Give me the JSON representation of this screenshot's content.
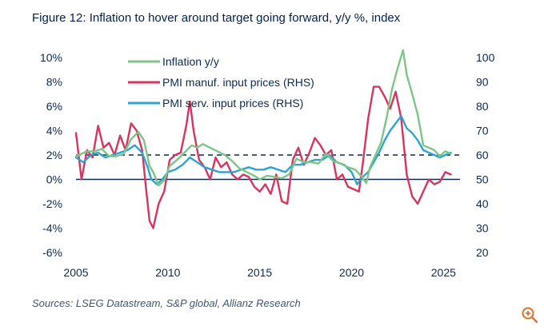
{
  "figure": {
    "title": "Figure 12: Inflation to hover around target going forward, y/y %, index",
    "source": "Sources: LSEG Datastream, S&P global, Allianz Research",
    "icon": "zoom-in-icon"
  },
  "chart_data": {
    "type": "line",
    "title": "Figure 12: Inflation to hover around target going forward, y/y %, index",
    "xlabel": "",
    "ylabel": "",
    "xlim": [
      2005,
      2025.9
    ],
    "ylim": [
      -6,
      10
    ],
    "y2lim": [
      20,
      100
    ],
    "x_ticks": [
      "2005",
      "2010",
      "2015",
      "2020",
      "2025"
    ],
    "y_ticks": [
      "10%",
      "8%",
      "6%",
      "4%",
      "2%",
      "0%",
      "-2%",
      "-4%",
      "-6%"
    ],
    "y2_ticks": [
      "100",
      "90",
      "80",
      "70",
      "60",
      "50",
      "40",
      "30",
      "20"
    ],
    "legend_position": "top-left",
    "reference_lines": [
      {
        "name": "Inflation target",
        "axis": "left",
        "value": 2,
        "style": "dashed"
      },
      {
        "name": "Zero line",
        "axis": "left",
        "value": 0,
        "style": "solid"
      }
    ],
    "series": [
      {
        "name": "Inflation y/y",
        "axis": "left",
        "color": "#7cc687",
        "x": [
          2005.0,
          2005.3,
          2005.6,
          2006.0,
          2006.4,
          2006.8,
          2007.2,
          2007.6,
          2008.0,
          2008.4,
          2008.7,
          2009.0,
          2009.2,
          2009.5,
          2009.8,
          2010.1,
          2010.5,
          2010.9,
          2011.3,
          2011.6,
          2011.9,
          2012.3,
          2012.7,
          2013.1,
          2013.5,
          2013.9,
          2014.3,
          2014.7,
          2015.0,
          2015.4,
          2015.8,
          2016.2,
          2016.6,
          2017.0,
          2017.4,
          2017.8,
          2018.2,
          2018.6,
          2019.0,
          2019.4,
          2019.8,
          2020.2,
          2020.5,
          2020.8,
          2021.0,
          2021.3,
          2021.6,
          2021.9,
          2022.2,
          2022.5,
          2022.8,
          2023.0,
          2023.3,
          2023.6,
          2023.9,
          2024.2,
          2024.5,
          2024.8,
          2025.1,
          2025.4
        ],
        "values": [
          1.9,
          2.1,
          2.3,
          2.3,
          2.5,
          1.9,
          1.9,
          2.1,
          3.3,
          3.9,
          3.2,
          1.1,
          0.6,
          -0.5,
          -0.1,
          1.1,
          1.6,
          2.2,
          2.8,
          2.6,
          2.9,
          2.6,
          2.3,
          2.0,
          1.5,
          0.9,
          0.6,
          0.3,
          0.0,
          0.3,
          0.2,
          0.1,
          0.4,
          1.7,
          1.4,
          1.4,
          1.3,
          2.1,
          1.5,
          1.3,
          1.0,
          0.8,
          0.3,
          -0.3,
          1.0,
          2.0,
          3.0,
          5.0,
          7.4,
          9.1,
          10.6,
          8.6,
          7.0,
          5.3,
          2.8,
          2.6,
          2.4,
          1.9,
          2.3,
          2.1
        ]
      },
      {
        "name": "PMI manuf. input prices (RHS)",
        "axis": "right",
        "color": "#d8345f",
        "x": [
          2005.0,
          2005.3,
          2005.6,
          2005.9,
          2006.2,
          2006.5,
          2006.8,
          2007.1,
          2007.4,
          2007.7,
          2008.0,
          2008.3,
          2008.6,
          2008.8,
          2009.0,
          2009.2,
          2009.5,
          2009.8,
          2010.1,
          2010.4,
          2010.7,
          2011.0,
          2011.2,
          2011.4,
          2011.7,
          2012.0,
          2012.3,
          2012.6,
          2012.9,
          2013.2,
          2013.5,
          2013.8,
          2014.1,
          2014.4,
          2014.7,
          2015.0,
          2015.3,
          2015.6,
          2015.9,
          2016.2,
          2016.5,
          2016.8,
          2017.1,
          2017.4,
          2017.7,
          2018.0,
          2018.3,
          2018.6,
          2018.9,
          2019.2,
          2019.5,
          2019.8,
          2020.1,
          2020.4,
          2020.6,
          2020.9,
          2021.2,
          2021.5,
          2021.8,
          2022.1,
          2022.4,
          2022.7,
          2023.0,
          2023.3,
          2023.6,
          2023.9,
          2024.2,
          2024.5,
          2024.8,
          2025.1,
          2025.4
        ],
        "values": [
          69,
          50,
          62,
          59,
          72,
          63,
          65,
          60,
          68,
          62,
          73,
          70,
          62,
          47,
          33,
          30,
          40,
          45,
          58,
          60,
          61,
          72,
          82,
          70,
          58,
          55,
          50,
          59,
          55,
          57,
          52,
          50,
          52,
          51,
          47,
          45,
          48,
          44,
          52,
          41,
          40,
          58,
          63,
          56,
          61,
          67,
          64,
          60,
          62,
          50,
          52,
          47,
          46,
          45,
          56,
          75,
          88,
          88,
          84,
          79,
          86,
          75,
          52,
          43,
          40,
          45,
          50,
          48,
          49,
          53,
          52
        ]
      },
      {
        "name": "PMI serv. input prices (RHS)",
        "axis": "right",
        "color": "#2ea3d3",
        "x": [
          2005.0,
          2005.4,
          2005.8,
          2006.2,
          2006.6,
          2007.0,
          2007.4,
          2007.8,
          2008.2,
          2008.6,
          2008.9,
          2009.1,
          2009.4,
          2009.7,
          2010.0,
          2010.4,
          2010.8,
          2011.2,
          2011.6,
          2012.0,
          2012.4,
          2012.8,
          2013.2,
          2013.6,
          2014.0,
          2014.4,
          2014.8,
          2015.2,
          2015.6,
          2016.0,
          2016.4,
          2016.8,
          2017.2,
          2017.6,
          2018.0,
          2018.4,
          2018.8,
          2019.2,
          2019.6,
          2020.0,
          2020.3,
          2020.6,
          2020.9,
          2021.2,
          2021.5,
          2021.8,
          2022.1,
          2022.4,
          2022.7,
          2023.0,
          2023.3,
          2023.6,
          2023.9,
          2024.2,
          2024.5,
          2024.8,
          2025.1,
          2025.4
        ],
        "values": [
          59,
          57,
          60,
          61,
          59,
          60,
          61,
          62,
          64,
          61,
          55,
          50,
          48,
          50,
          53,
          54,
          56,
          59,
          57,
          55,
          54,
          53,
          53,
          53,
          54,
          55,
          54,
          54,
          55,
          54,
          53,
          56,
          56,
          57,
          58,
          58,
          60,
          57,
          56,
          53,
          48,
          51,
          53,
          57,
          61,
          66,
          70,
          73,
          76,
          71,
          69,
          66,
          62,
          61,
          60,
          59,
          60,
          61
        ]
      }
    ]
  }
}
